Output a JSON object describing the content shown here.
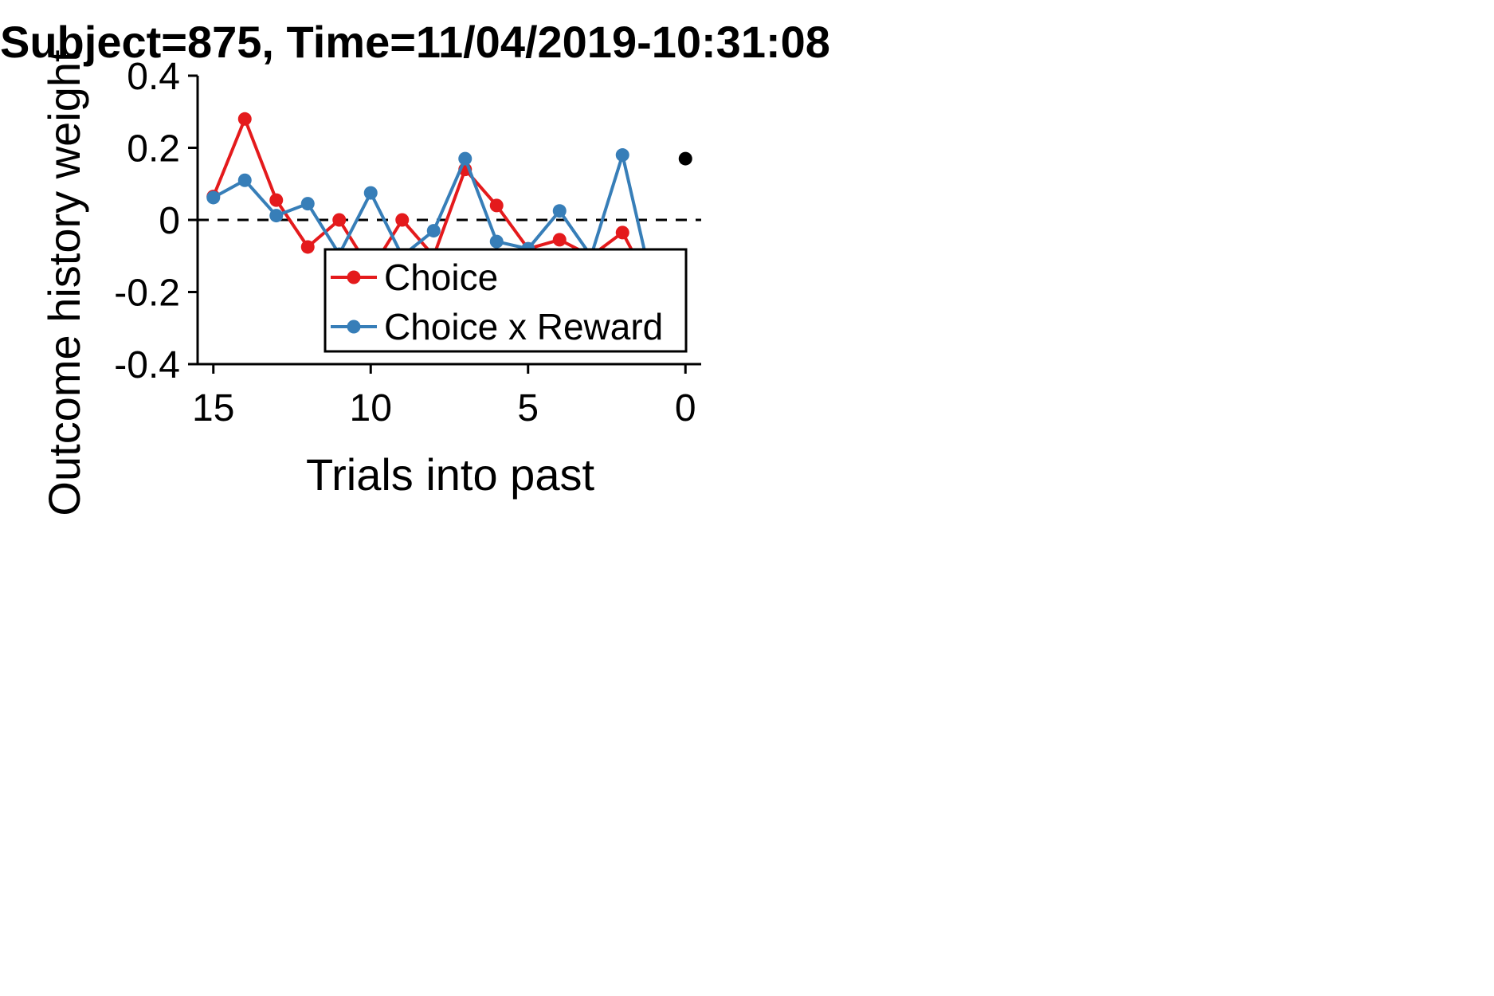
{
  "chart_data": {
    "type": "line",
    "title": "Subject=875, Time=11/04/2019-10:31:08",
    "xlabel": "Trials into past",
    "ylabel": "Outcome history weight",
    "xlim": [
      15.5,
      -0.5
    ],
    "ylim": [
      -0.4,
      0.4
    ],
    "x_ticks": [
      15,
      10,
      5,
      0
    ],
    "x_tick_labels": [
      "15",
      "10",
      "5",
      "0"
    ],
    "y_ticks": [
      0.4,
      0.2,
      0,
      -0.2,
      -0.4
    ],
    "y_tick_labels": [
      "0.4",
      "0.2",
      "0",
      "-0.2",
      "-0.4"
    ],
    "reference_line": {
      "y": 0,
      "style": "dashed"
    },
    "legend_position": "lower-right",
    "x": [
      15,
      14,
      13,
      12,
      11,
      10,
      9,
      8,
      7,
      6,
      5,
      4,
      3,
      2,
      1
    ],
    "series": [
      {
        "name": "Choice",
        "color": "#e41a1c",
        "values": [
          0.065,
          0.28,
          0.055,
          -0.075,
          0.0,
          -0.14,
          0.0,
          -0.1,
          0.14,
          0.04,
          -0.08,
          -0.055,
          -0.1,
          -0.035,
          -0.2
        ]
      },
      {
        "name": "Choice x Reward",
        "color": "#377eb8",
        "values": [
          0.062,
          0.11,
          0.012,
          0.045,
          -0.095,
          0.075,
          -0.1,
          -0.03,
          0.17,
          -0.06,
          -0.08,
          0.025,
          -0.1,
          0.18,
          -0.2
        ]
      }
    ],
    "extra_points": [
      {
        "x": 0,
        "y": 0.17,
        "color": "#000000"
      }
    ]
  }
}
